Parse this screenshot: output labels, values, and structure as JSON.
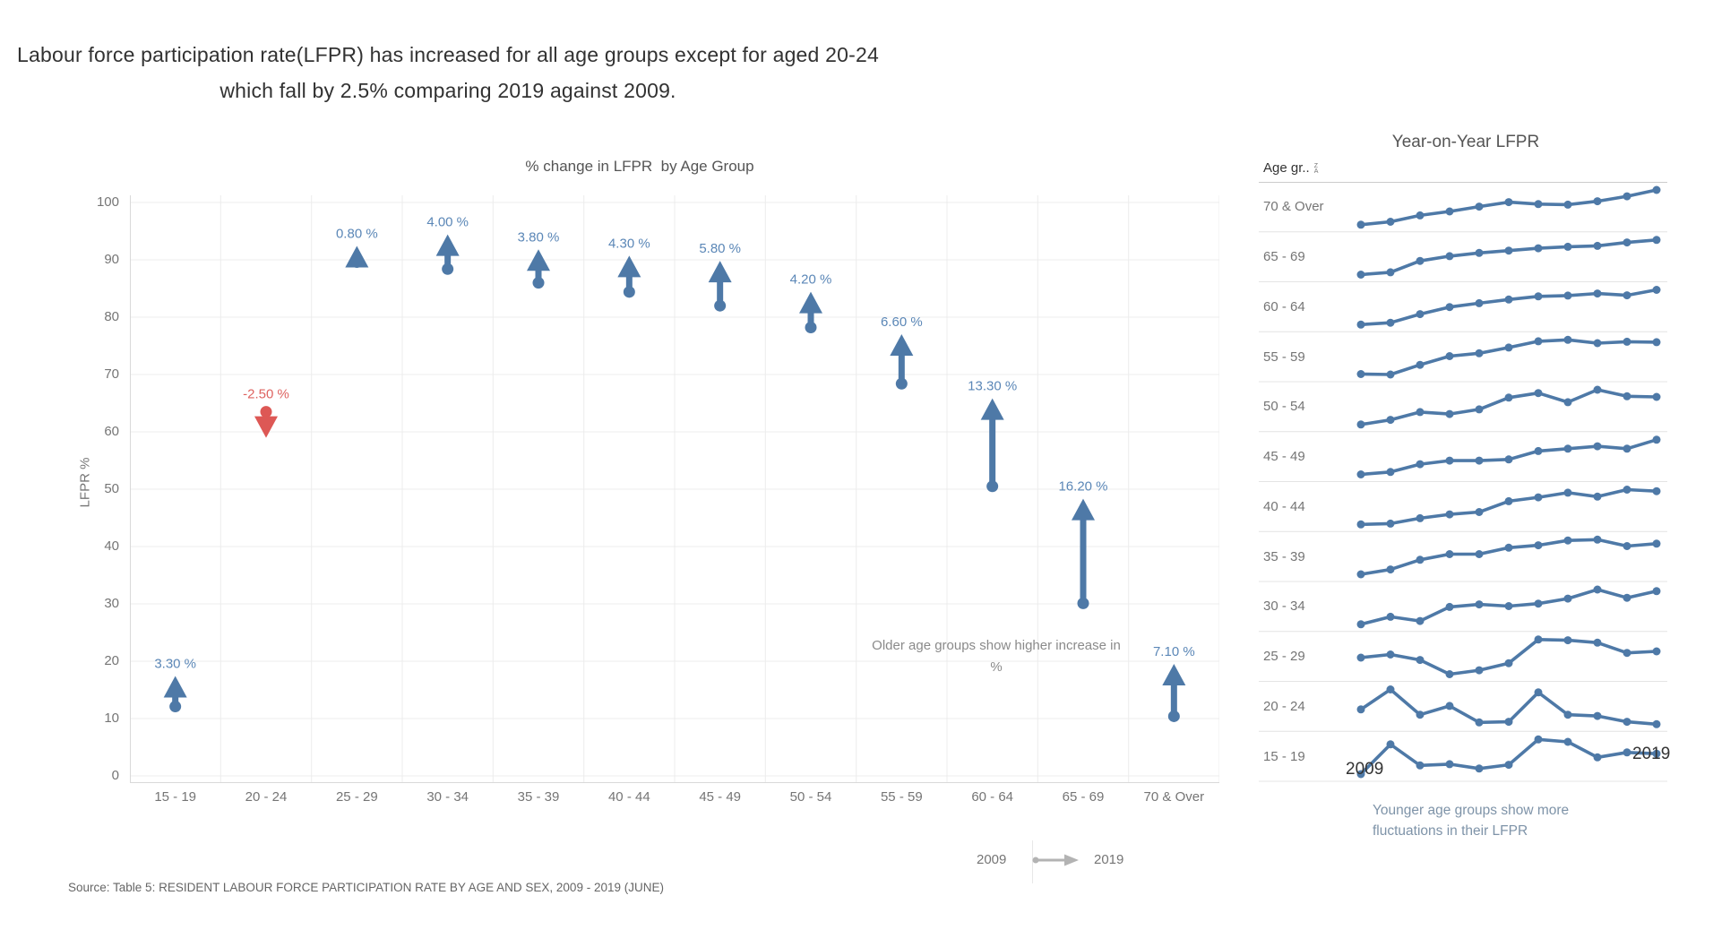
{
  "dashboard": {
    "title_line1": "Labour force participation rate(LFPR) has increased for all age groups except for aged 20-24",
    "title_line2": "which fall by 2.5% comparing 2019 against 2009.",
    "source": "Source: Table 5: RESIDENT LABOUR FORCE PARTICIPATION RATE BY AGE AND SEX, 2009 - 2019 (JUNE)"
  },
  "colors": {
    "increase": "#4e79a7",
    "increase_label": "#5b87b7",
    "decrease": "#dd5855",
    "decrease_label": "#de6360",
    "line": "#4e79a7",
    "grid": "#ececec",
    "axis": "#d9d9d9",
    "row_separator": "#e4e4e4",
    "header_rule": "#cccccc",
    "legend_arrow": "#b3b3b3",
    "tick_text": "#757575"
  },
  "change_chart": {
    "title": "% change in LFPR  by Age Group",
    "ylabel": "LFPR %",
    "annotation_line1": "Older age groups show higher increase in",
    "annotation_line2": "%",
    "legend": {
      "from_label": "2009",
      "to_label": "2019"
    }
  },
  "yoy_chart": {
    "title": "Year-on-Year LFPR",
    "column_header": "Age gr..",
    "sort_icon_letters": {
      "top": "Z",
      "bottom": "A"
    },
    "x_start_label": "2009",
    "x_end_label": "2019",
    "caption_line1": "Younger age groups show more",
    "caption_line2": "fluctuations in their LFPR"
  },
  "chart_data": [
    {
      "type": "arrow",
      "title": "% change in LFPR  by Age Group",
      "xlabel": "",
      "ylabel": "LFPR %",
      "ylim": [
        0,
        100
      ],
      "ytick_step": 10,
      "grid": true,
      "legend_position": "bottom-right",
      "categories": [
        "15 - 19",
        "20 - 24",
        "25 - 29",
        "30 - 34",
        "35 - 39",
        "40 - 44",
        "45 - 49",
        "50 - 54",
        "55 - 59",
        "60 - 64",
        "65 - 69",
        "70 & Over"
      ],
      "series": [
        {
          "name": "2009",
          "values": [
            12.1,
            63.5,
            89.6,
            88.4,
            86.0,
            84.4,
            82.0,
            78.2,
            68.4,
            50.5,
            30.1,
            10.4
          ]
        },
        {
          "name": "2019",
          "values": [
            15.4,
            61.0,
            90.4,
            92.4,
            89.8,
            88.7,
            87.8,
            82.4,
            75.0,
            63.8,
            46.3,
            17.5
          ]
        }
      ],
      "change_labels": [
        "3.30 %",
        "-2.50 %",
        "0.80 %",
        "4.00 %",
        "3.80 %",
        "4.30 %",
        "5.80 %",
        "4.20 %",
        "6.60 %",
        "13.30 %",
        "16.20 %",
        "7.10 %"
      ],
      "negative_index": 1,
      "annotation": "Older age groups show higher increase in %"
    },
    {
      "type": "line",
      "title": "Year-on-Year LFPR",
      "x": [
        2009,
        2010,
        2011,
        2012,
        2013,
        2014,
        2015,
        2016,
        2017,
        2018,
        2019
      ],
      "x_axis_labels_shown": [
        "2009",
        "2019"
      ],
      "grid": false,
      "normalization": "independent-per-row",
      "rows": [
        {
          "label": "70 & Over",
          "values": [
            10.4,
            11.0,
            12.3,
            13.1,
            14.1,
            15.0,
            14.6,
            14.5,
            15.2,
            16.2,
            17.5
          ]
        },
        {
          "label": "65 - 69",
          "values": [
            30.1,
            31.2,
            36.5,
            38.7,
            40.2,
            41.3,
            42.4,
            43.1,
            43.5,
            45.1,
            46.3
          ]
        },
        {
          "label": "60 - 64",
          "values": [
            50.5,
            51.2,
            54.5,
            57.2,
            58.7,
            60.1,
            61.3,
            61.6,
            62.4,
            61.7,
            63.8
          ]
        },
        {
          "label": "55 - 59",
          "values": [
            68.4,
            68.3,
            70.3,
            72.1,
            72.7,
            73.9,
            75.2,
            75.5,
            74.8,
            75.1,
            75.0
          ]
        },
        {
          "label": "50 - 54",
          "values": [
            78.2,
            78.9,
            80.1,
            79.8,
            80.5,
            82.3,
            83.0,
            81.6,
            83.5,
            82.5,
            82.4
          ]
        },
        {
          "label": "45 - 49",
          "values": [
            82.0,
            82.4,
            83.7,
            84.3,
            84.3,
            84.5,
            85.9,
            86.3,
            86.7,
            86.3,
            87.8
          ]
        },
        {
          "label": "40 - 44",
          "values": [
            84.4,
            84.5,
            85.2,
            85.7,
            86.0,
            87.4,
            87.9,
            88.5,
            88.0,
            88.9,
            88.7
          ]
        },
        {
          "label": "35 - 39",
          "values": [
            86.0,
            86.6,
            87.8,
            88.5,
            88.5,
            89.3,
            89.6,
            90.2,
            90.3,
            89.5,
            89.8
          ]
        },
        {
          "label": "30 - 34",
          "values": [
            88.4,
            89.3,
            88.8,
            90.5,
            90.8,
            90.6,
            90.9,
            91.5,
            92.6,
            91.6,
            92.4
          ]
        },
        {
          "label": "25 - 29",
          "values": [
            89.6,
            90.0,
            89.3,
            87.5,
            88.0,
            88.9,
            91.9,
            91.8,
            91.5,
            90.2,
            90.4
          ]
        },
        {
          "label": "20 - 24",
          "values": [
            63.5,
            66.9,
            62.6,
            64.1,
            61.3,
            61.4,
            66.4,
            62.6,
            62.4,
            61.4,
            61.0
          ]
        },
        {
          "label": "15 - 19",
          "values": [
            12.1,
            16.9,
            13.5,
            13.7,
            13.0,
            13.6,
            17.7,
            17.3,
            14.8,
            15.6,
            15.4
          ]
        }
      ],
      "caption": "Younger age groups show more fluctuations in their LFPR"
    }
  ]
}
